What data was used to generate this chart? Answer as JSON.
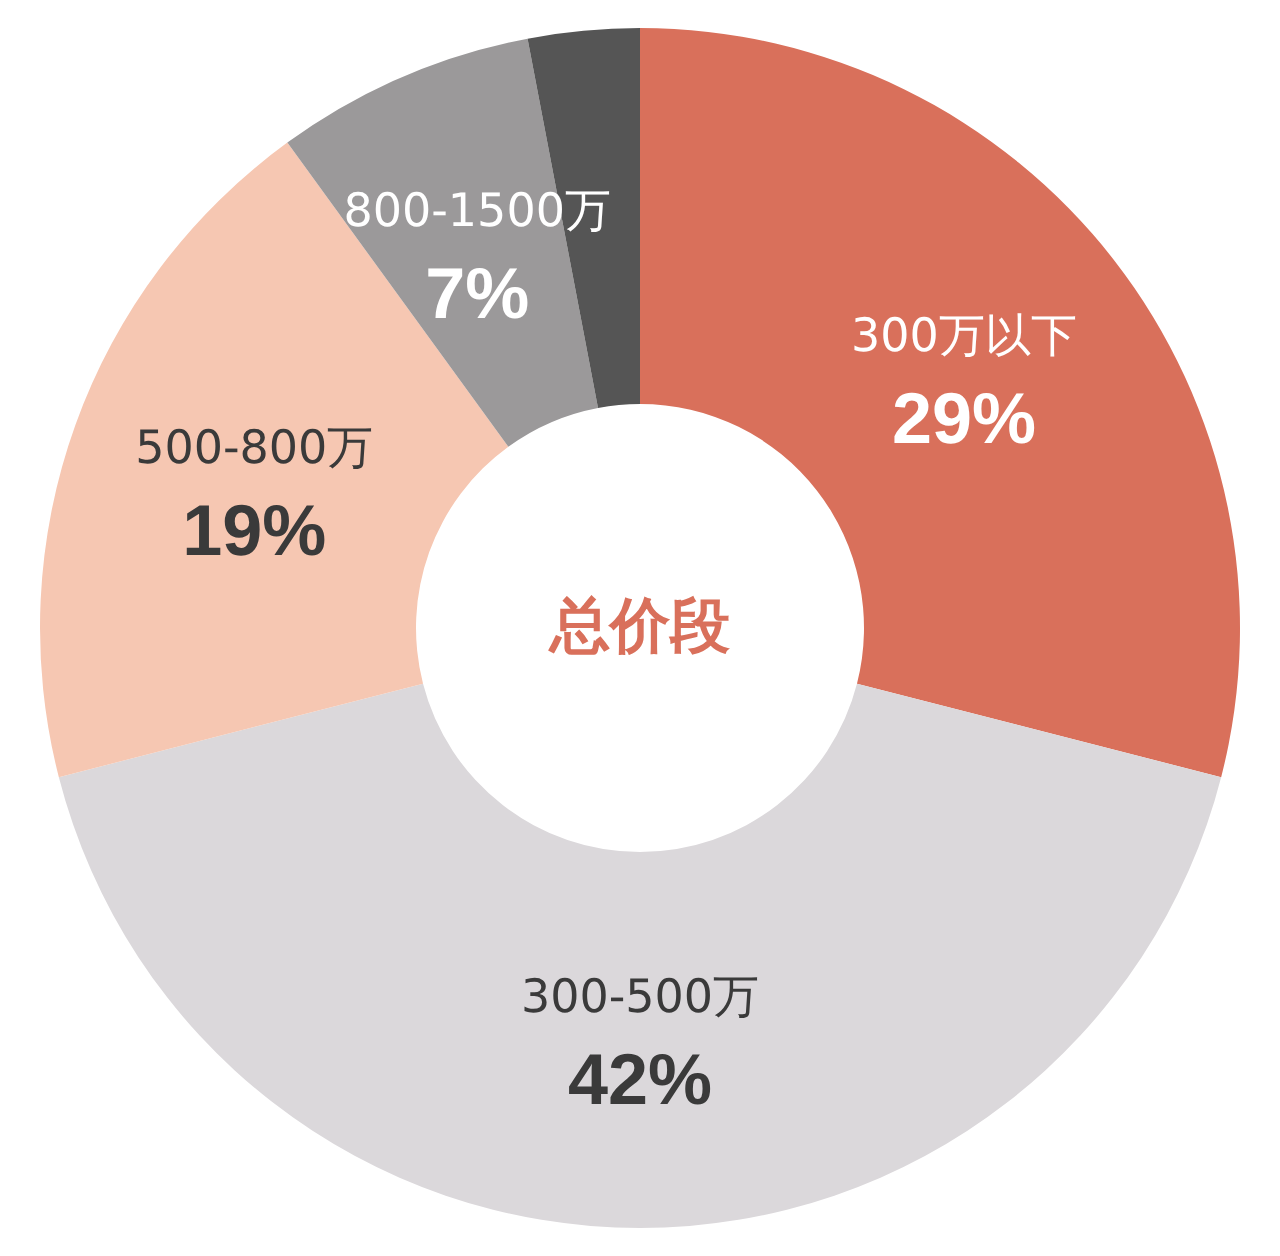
{
  "chart_data": {
    "type": "donut",
    "title": "总价段",
    "categories": [
      "300万以下",
      "300-500万",
      "500-800万",
      "800-1500万",
      null
    ],
    "values": [
      29,
      42,
      19,
      7,
      3
    ],
    "value_labels": [
      "29%",
      "42%",
      "19%",
      "7%",
      null
    ],
    "colors": [
      "#d9705b",
      "#dbd8db",
      "#f6c7b2",
      "#9b999a",
      "#555555"
    ]
  }
}
